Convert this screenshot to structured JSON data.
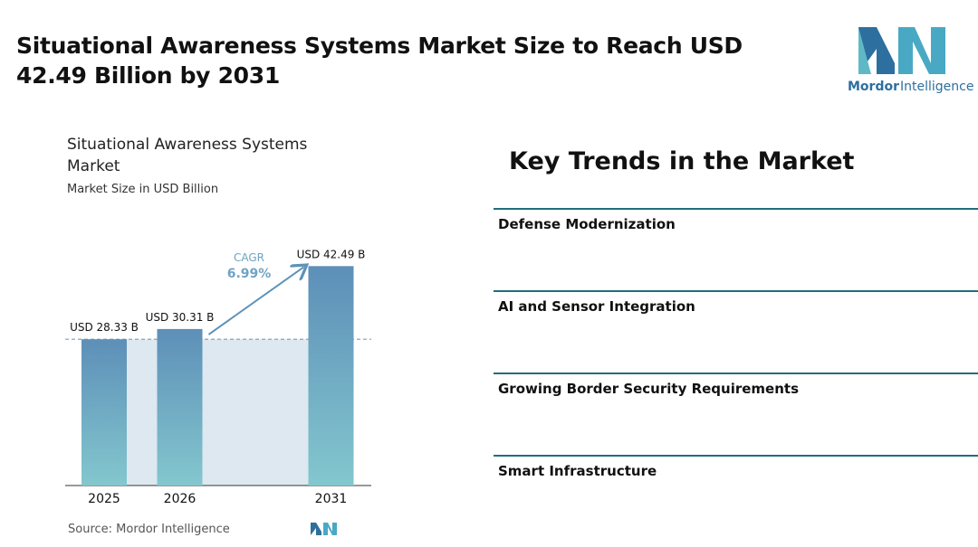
{
  "header": {
    "title": "Situational Awareness Systems Market Size to Reach USD 42.49 Billion by 2031"
  },
  "logo": {
    "brand": "Mordor",
    "suffix": "Intelligence"
  },
  "chart_data": {
    "type": "bar",
    "title": "Situational Awareness Systems Market",
    "subtitle": "Market Size in USD Billion",
    "categories": [
      "2025",
      "2026",
      "2031"
    ],
    "values": [
      28.33,
      30.31,
      42.49
    ],
    "value_labels": [
      "USD 28.33 B",
      "USD 30.31 B",
      "USD 42.49 B"
    ],
    "ylim": [
      0,
      45
    ],
    "color": "#5d93b8",
    "annotation": {
      "label": "CAGR",
      "value": "6.99%"
    },
    "source": "Source: Mordor Intelligence"
  },
  "trends": {
    "title": "Key Trends in the Market",
    "items": [
      "Defense Modernization",
      "AI and Sensor Integration",
      "Growing Border Security Requirements",
      "Smart Infrastructure"
    ]
  }
}
